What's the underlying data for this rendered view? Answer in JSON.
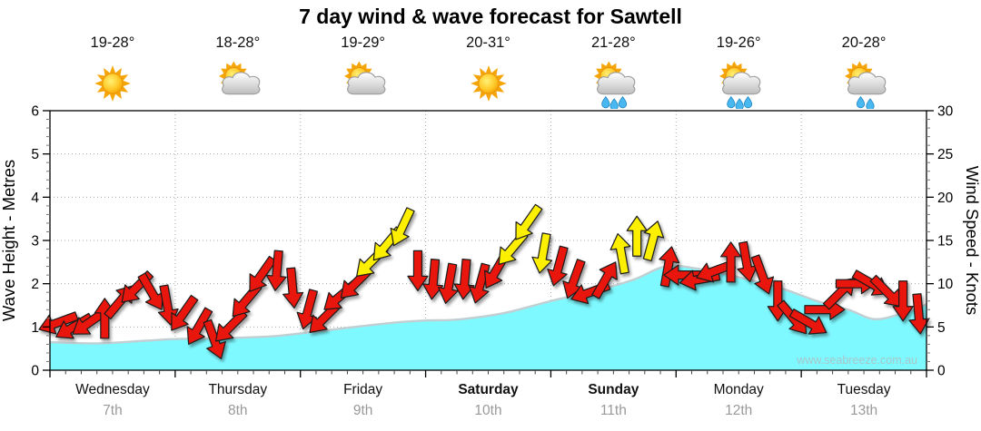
{
  "title": "7 day wind & wave forecast for Sawtell",
  "watermark": "www.seabreeze.com.au",
  "colors": {
    "wave_fill": "#7EF9FF",
    "wave_edge": "#C2CFD2",
    "arrow_red": "#E8180B",
    "arrow_yellow": "#FCEF00",
    "arrow_outline": "#1A1A1A",
    "grid": "#AAAAAA",
    "axis": "#000000",
    "date_grey": "#999999",
    "watermark_grey": "#A9C6C8"
  },
  "days": [
    {
      "name": "Wednesday",
      "date": "7th",
      "temp": "19-28°",
      "icon": "sunny",
      "weekend": false
    },
    {
      "name": "Thursday",
      "date": "8th",
      "temp": "18-28°",
      "icon": "partly-cloudy",
      "weekend": false
    },
    {
      "name": "Friday",
      "date": "9th",
      "temp": "19-29°",
      "icon": "partly-cloudy",
      "weekend": false
    },
    {
      "name": "Saturday",
      "date": "10th",
      "temp": "20-31°",
      "icon": "sunny",
      "weekend": true
    },
    {
      "name": "Sunday",
      "date": "11th",
      "temp": "21-28°",
      "icon": "showers",
      "weekend": true
    },
    {
      "name": "Monday",
      "date": "12th",
      "temp": "19-26°",
      "icon": "showers",
      "weekend": false
    },
    {
      "name": "Tuesday",
      "date": "13th",
      "temp": "20-28°",
      "icon": "few-showers",
      "weekend": false
    }
  ],
  "chart_data": {
    "type": "area",
    "title": "7 day wind & wave forecast for Sawtell",
    "x_axis": {
      "unit": "hours",
      "range": [
        0,
        168
      ],
      "days": 7,
      "minor_tick_every_h": 3,
      "major_tick_every_h": 24
    },
    "y_left": {
      "label": "Wave Height - Metres",
      "range": [
        0,
        6
      ],
      "ticks": [
        0,
        1,
        2,
        3,
        4,
        5,
        6
      ],
      "minor_tick": 0.2,
      "gridline_every": 1
    },
    "y_right": {
      "label": "Wind Speed - Knots",
      "range": [
        0,
        30
      ],
      "ticks": [
        0,
        5,
        10,
        15,
        20,
        25,
        30
      ],
      "minor_tick": 1,
      "gridline_every": 5
    },
    "grid": {
      "style": "dotted",
      "horizontal_at_metres": [
        1,
        2,
        3,
        4,
        5
      ],
      "vertical_at_day_boundaries": true
    },
    "wave_height_m": {
      "series_name": "Wave Height",
      "point_format": [
        "hour",
        "metres"
      ],
      "points": [
        [
          0,
          0.65
        ],
        [
          9,
          0.62
        ],
        [
          18,
          0.68
        ],
        [
          24,
          0.72
        ],
        [
          33,
          0.74
        ],
        [
          42,
          0.78
        ],
        [
          48,
          0.85
        ],
        [
          57,
          0.98
        ],
        [
          66,
          1.1
        ],
        [
          72,
          1.15
        ],
        [
          78,
          1.17
        ],
        [
          87,
          1.32
        ],
        [
          96,
          1.6
        ],
        [
          105,
          1.85
        ],
        [
          112,
          2.1
        ],
        [
          118,
          2.4
        ],
        [
          124,
          2.35
        ],
        [
          132,
          2.15
        ],
        [
          140,
          1.9
        ],
        [
          147,
          1.6
        ],
        [
          153,
          1.4
        ],
        [
          158,
          1.18
        ],
        [
          163,
          1.3
        ],
        [
          168,
          1.52
        ]
      ]
    },
    "wind": {
      "series_name": "Wind Speed & Direction",
      "point_format": [
        "hour",
        "knots",
        "direction_deg_arrow_points_toward_0_is_up",
        "color_code"
      ],
      "color_codes": {
        "r": "red (lighter wind)",
        "y": "yellow (stronger wind)"
      },
      "points": [
        [
          1.5,
          5.5,
          250,
          "r"
        ],
        [
          4.5,
          5.0,
          240,
          "r"
        ],
        [
          7.5,
          5.5,
          235,
          "r"
        ],
        [
          10.5,
          6.0,
          0,
          "r"
        ],
        [
          13.5,
          8.0,
          40,
          "r"
        ],
        [
          16.5,
          9.5,
          225,
          "r"
        ],
        [
          19.5,
          9.0,
          150,
          "r"
        ],
        [
          22.5,
          7.5,
          170,
          "r"
        ],
        [
          25.5,
          6.5,
          215,
          "r"
        ],
        [
          28.5,
          5.0,
          210,
          "r"
        ],
        [
          31.5,
          3.5,
          160,
          "r"
        ],
        [
          34.5,
          5.0,
          225,
          "r"
        ],
        [
          37.5,
          8.0,
          220,
          "r"
        ],
        [
          40.5,
          11.0,
          215,
          "r"
        ],
        [
          43.5,
          11.5,
          185,
          "r"
        ],
        [
          46.5,
          9.5,
          175,
          "r"
        ],
        [
          49.5,
          7.0,
          195,
          "r"
        ],
        [
          52.5,
          6.0,
          225,
          "r"
        ],
        [
          55.5,
          8.5,
          230,
          "r"
        ],
        [
          58.5,
          10.0,
          225,
          "r"
        ],
        [
          61.5,
          12.5,
          225,
          "y"
        ],
        [
          64.5,
          14.5,
          220,
          "y"
        ],
        [
          67.5,
          16.5,
          205,
          "y"
        ],
        [
          70.5,
          11.5,
          180,
          "r"
        ],
        [
          73.5,
          10.5,
          185,
          "r"
        ],
        [
          76.5,
          10.0,
          190,
          "r"
        ],
        [
          79.5,
          10.5,
          185,
          "r"
        ],
        [
          82.5,
          10.0,
          195,
          "r"
        ],
        [
          85.5,
          11.5,
          210,
          "r"
        ],
        [
          88.5,
          14.0,
          220,
          "y"
        ],
        [
          91.5,
          17.0,
          215,
          "y"
        ],
        [
          94.5,
          13.5,
          190,
          "y"
        ],
        [
          97.5,
          12.0,
          195,
          "r"
        ],
        [
          100.5,
          10.5,
          200,
          "r"
        ],
        [
          103.5,
          9.0,
          250,
          "r"
        ],
        [
          106.5,
          10.5,
          30,
          "r"
        ],
        [
          109.5,
          13.5,
          350,
          "y"
        ],
        [
          112.5,
          15.5,
          0,
          "y"
        ],
        [
          115.5,
          15.0,
          15,
          "y"
        ],
        [
          118.5,
          12.0,
          10,
          "r"
        ],
        [
          121.5,
          11.0,
          270,
          "r"
        ],
        [
          124.5,
          10.5,
          260,
          "r"
        ],
        [
          127.5,
          11.5,
          250,
          "r"
        ],
        [
          130.5,
          12.5,
          0,
          "r"
        ],
        [
          133.5,
          12.5,
          170,
          "r"
        ],
        [
          136.5,
          11.0,
          160,
          "r"
        ],
        [
          139.5,
          8.0,
          180,
          "r"
        ],
        [
          142.5,
          6.0,
          140,
          "r"
        ],
        [
          145.5,
          5.5,
          120,
          "r"
        ],
        [
          148.5,
          7.0,
          90,
          "r"
        ],
        [
          151.5,
          9.0,
          45,
          "r"
        ],
        [
          154.5,
          10.0,
          90,
          "r"
        ],
        [
          157.5,
          10.0,
          120,
          "r"
        ],
        [
          160.5,
          9.0,
          135,
          "r"
        ],
        [
          163.5,
          8.0,
          180,
          "r"
        ],
        [
          166.5,
          6.5,
          175,
          "r"
        ]
      ]
    }
  }
}
